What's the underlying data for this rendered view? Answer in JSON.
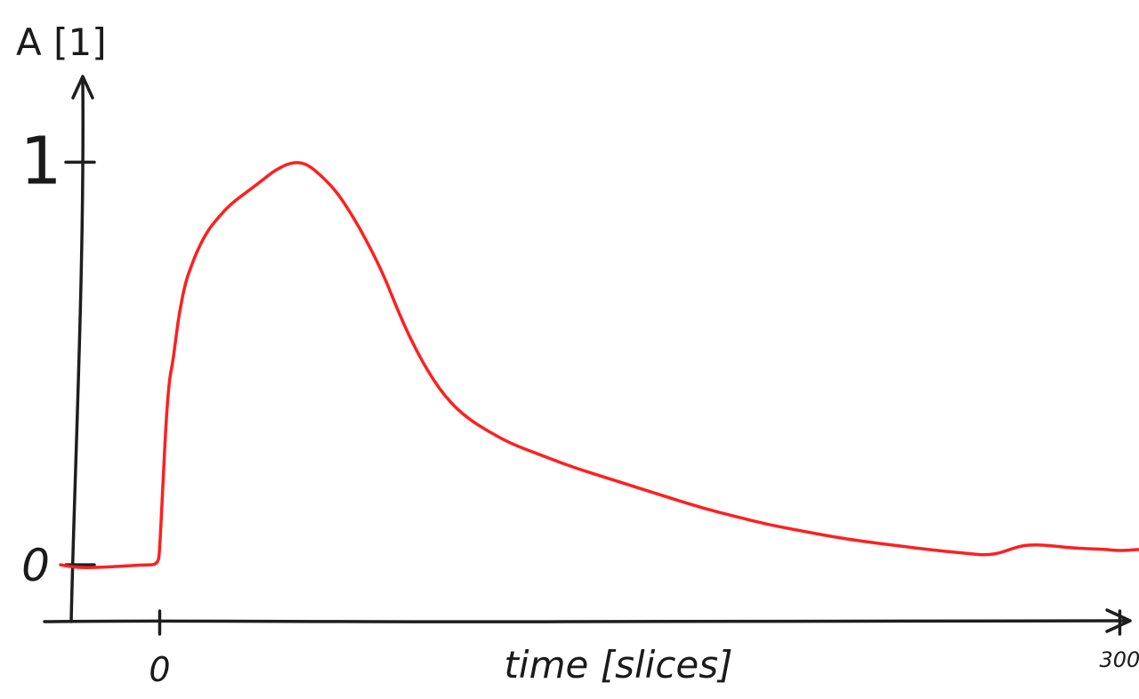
{
  "chart_data": {
    "type": "line",
    "title": "",
    "xlabel": "time [slices]",
    "ylabel": "A [1]",
    "xlim": [
      -36,
      306
    ],
    "ylim": [
      -0.15,
      1.16
    ],
    "x_ticks": [
      {
        "value": 0,
        "label": "0"
      },
      {
        "value": 300,
        "label": "300"
      }
    ],
    "y_ticks": [
      {
        "value": 0,
        "label": "0"
      },
      {
        "value": 1,
        "label": "1"
      }
    ],
    "grid": false,
    "legend": "none",
    "series": [
      {
        "color": "#ff1f1f",
        "x": [
          -31,
          -25,
          -15,
          -5,
          -0.5,
          0,
          1,
          2,
          3,
          4,
          5,
          6,
          8,
          10,
          12,
          15,
          18,
          22,
          27,
          32,
          36,
          40,
          43,
          46,
          50,
          55,
          60,
          65,
          70,
          75,
          80,
          85,
          90,
          96,
          103,
          110,
          120,
          130,
          140,
          150,
          160,
          170,
          180,
          190,
          200,
          210,
          220,
          230,
          240,
          250,
          260,
          268,
          272,
          278,
          285,
          290,
          296,
          300,
          306
        ],
        "y": [
          0.0,
          -0.008,
          -0.005,
          0.0,
          0.0,
          0.04,
          0.2,
          0.36,
          0.46,
          0.5,
          0.56,
          0.62,
          0.7,
          0.745,
          0.785,
          0.83,
          0.86,
          0.895,
          0.925,
          0.955,
          0.98,
          0.996,
          1.0,
          0.995,
          0.97,
          0.93,
          0.87,
          0.8,
          0.72,
          0.62,
          0.535,
          0.465,
          0.41,
          0.365,
          0.33,
          0.3,
          0.27,
          0.24,
          0.215,
          0.19,
          0.165,
          0.14,
          0.12,
          0.1,
          0.085,
          0.07,
          0.058,
          0.048,
          0.038,
          0.03,
          0.022,
          0.045,
          0.05,
          0.048,
          0.042,
          0.04,
          0.038,
          0.035,
          0.038
        ]
      }
    ]
  }
}
